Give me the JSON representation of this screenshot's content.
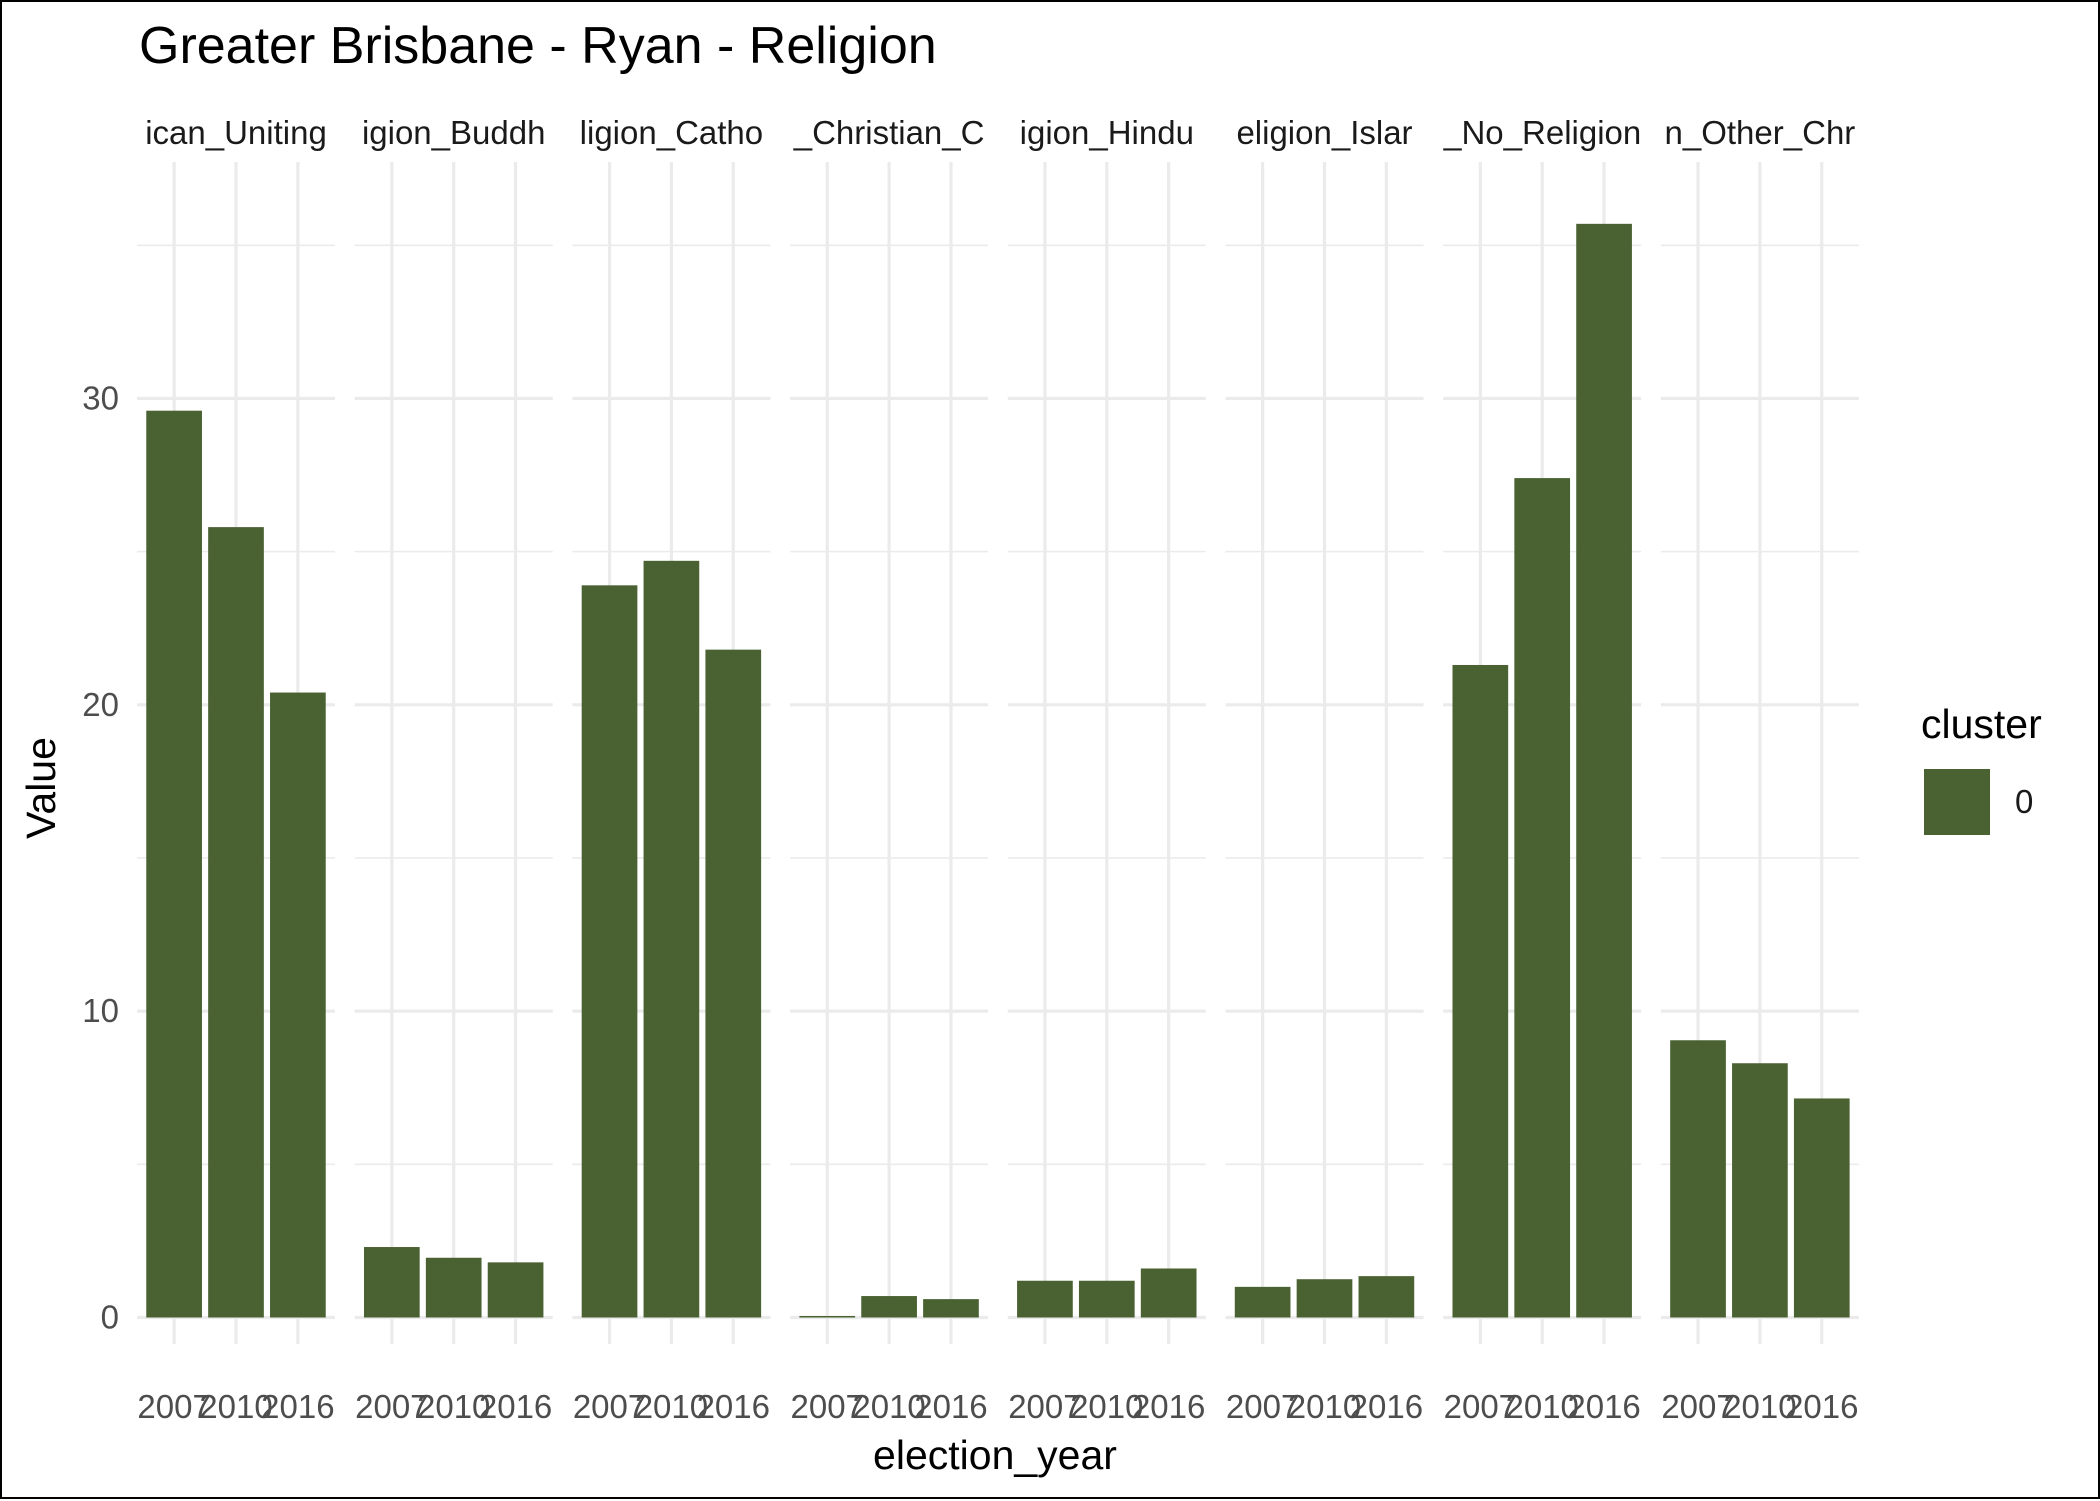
{
  "chart_data": {
    "type": "bar",
    "title": "Greater Brisbane - Ryan - Religion",
    "xlabel": "election_year",
    "ylabel": "Value",
    "ylim": [
      0,
      37
    ],
    "yticks": [
      0,
      10,
      20,
      30
    ],
    "grid": true,
    "legend": {
      "title": "cluster",
      "position": "right",
      "items": [
        {
          "label": "0",
          "color": "#4a6132"
        }
      ]
    },
    "bar_color": "#4a6132",
    "x_tick_labels": [
      "2007",
      "2010",
      "2016"
    ],
    "panels": [
      {
        "label": "ican_Uniting",
        "values": [
          29.6,
          25.8,
          20.4
        ]
      },
      {
        "label": "igion_Buddh",
        "values": [
          2.3,
          1.95,
          1.8
        ]
      },
      {
        "label": "ligion_Catho",
        "values": [
          23.9,
          24.7,
          21.8
        ]
      },
      {
        "label": "_Christian_C",
        "values": [
          0.05,
          0.7,
          0.6
        ]
      },
      {
        "label": "igion_Hindu",
        "values": [
          1.2,
          1.2,
          1.6
        ]
      },
      {
        "label": "eligion_Islar",
        "values": [
          1.0,
          1.25,
          1.35
        ]
      },
      {
        "label": "_No_Religion",
        "values": [
          21.3,
          27.4,
          35.7
        ]
      },
      {
        "label": "n_Other_Chr",
        "values": [
          9.05,
          8.3,
          7.15
        ]
      }
    ]
  }
}
